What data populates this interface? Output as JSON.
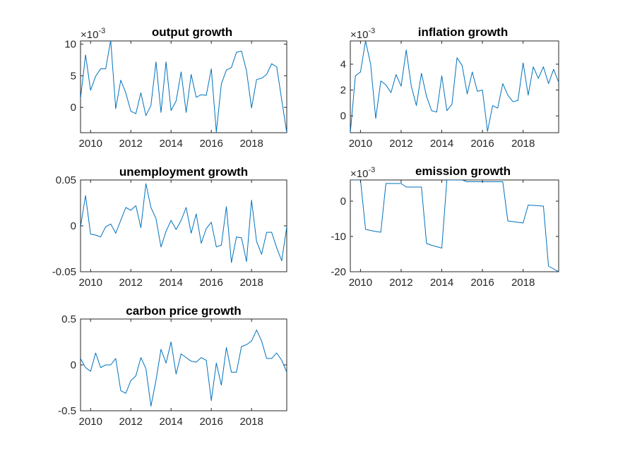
{
  "colors": {
    "series": "#0072bd",
    "axis": "#262626",
    "background": "#ffffff"
  },
  "chart_data": [
    {
      "type": "line",
      "title": "output growth",
      "exponent_label": "×10",
      "exponent_power": "-3",
      "x": [
        2009.5,
        2009.75,
        2010,
        2010.25,
        2010.5,
        2010.75,
        2011,
        2011.25,
        2011.5,
        2011.75,
        2012,
        2012.25,
        2012.5,
        2012.75,
        2013,
        2013.25,
        2013.5,
        2013.75,
        2014,
        2014.25,
        2014.5,
        2014.75,
        2015,
        2015.25,
        2015.5,
        2015.75,
        2016,
        2016.25,
        2016.5,
        2016.75,
        2017,
        2017.25,
        2017.5,
        2017.75,
        2018,
        2018.25,
        2018.5,
        2018.75,
        2019,
        2019.25,
        2019.5,
        2019.75
      ],
      "series": [
        {
          "values": [
            1.4,
            8.3,
            2.7,
            4.9,
            6.1,
            6.1,
            10.6,
            -0.2,
            4.3,
            2.3,
            -0.6,
            -1.0,
            2.3,
            -1.3,
            0.3,
            7.2,
            -0.8,
            7.2,
            -0.5,
            1.0,
            5.6,
            -0.8,
            5.2,
            1.6,
            2.0,
            1.9,
            6.1,
            -3.9,
            3.7,
            5.9,
            6.3,
            8.7,
            8.9,
            5.8,
            -0.1,
            4.4,
            4.6,
            5.2,
            6.9,
            6.4,
            1.2,
            -4.0
          ]
        }
      ],
      "xlim": [
        2009.5,
        2019.75
      ],
      "ylim": [
        -4,
        10.5
      ],
      "xticks": [
        2010,
        2012,
        2014,
        2016,
        2018
      ],
      "xtick_labels": [
        "2010",
        "2012",
        "2014",
        "2016",
        "2018"
      ],
      "yticks": [
        0,
        5,
        10
      ],
      "ytick_labels": [
        "0",
        "5",
        "10"
      ]
    },
    {
      "type": "line",
      "title": "inflation growth",
      "exponent_label": "×10",
      "exponent_power": "-3",
      "x": [
        2009.5,
        2009.75,
        2010,
        2010.25,
        2010.5,
        2010.75,
        2011,
        2011.25,
        2011.5,
        2011.75,
        2012,
        2012.25,
        2012.5,
        2012.75,
        2013,
        2013.25,
        2013.5,
        2013.75,
        2014,
        2014.25,
        2014.5,
        2014.75,
        2015,
        2015.25,
        2015.5,
        2015.75,
        2016,
        2016.25,
        2016.5,
        2016.75,
        2017,
        2017.25,
        2017.5,
        2017.75,
        2018,
        2018.25,
        2018.5,
        2018.75,
        2019,
        2019.25,
        2019.5,
        2019.75
      ],
      "series": [
        {
          "values": [
            -1.3,
            3.1,
            3.4,
            5.8,
            4.0,
            -0.2,
            2.7,
            2.4,
            1.8,
            3.2,
            2.3,
            5.1,
            2.3,
            0.8,
            3.3,
            1.5,
            0.4,
            0.3,
            3.1,
            0.4,
            0.9,
            4.5,
            3.9,
            1.7,
            3.4,
            1.9,
            2.0,
            -1.2,
            0.8,
            0.6,
            2.5,
            1.6,
            1.1,
            1.2,
            4.1,
            1.6,
            3.8,
            2.9,
            3.8,
            2.5,
            3.6,
            2.6
          ]
        }
      ],
      "xlim": [
        2009.5,
        2019.75
      ],
      "ylim": [
        -1.3,
        5.8
      ],
      "xticks": [
        2010,
        2012,
        2014,
        2016,
        2018
      ],
      "xtick_labels": [
        "2010",
        "2012",
        "2014",
        "2016",
        "2018"
      ],
      "yticks": [
        0,
        2,
        4
      ],
      "ytick_labels": [
        "0",
        "2",
        "4"
      ]
    },
    {
      "type": "line",
      "title": "unemployment growth",
      "exponent_label": "",
      "exponent_power": "",
      "x": [
        2009.5,
        2009.75,
        2010,
        2010.25,
        2010.5,
        2010.75,
        2011,
        2011.25,
        2011.5,
        2011.75,
        2012,
        2012.25,
        2012.5,
        2012.75,
        2013,
        2013.25,
        2013.5,
        2013.75,
        2014,
        2014.25,
        2014.5,
        2014.75,
        2015,
        2015.25,
        2015.5,
        2015.75,
        2016,
        2016.25,
        2016.5,
        2016.75,
        2017,
        2017.25,
        2017.5,
        2017.75,
        2018,
        2018.25,
        2018.5,
        2018.75,
        2019,
        2019.25,
        2019.5,
        2019.75
      ],
      "series": [
        {
          "values": [
            -0.001,
            0.033,
            -0.009,
            -0.01,
            -0.012,
            -0.001,
            0.002,
            -0.008,
            0.006,
            0.02,
            0.017,
            0.022,
            -0.002,
            0.046,
            0.02,
            0.008,
            -0.023,
            -0.006,
            0.006,
            -0.004,
            0.006,
            0.02,
            -0.008,
            0.013,
            -0.019,
            -0.003,
            0.004,
            -0.023,
            -0.021,
            0.021,
            -0.04,
            -0.012,
            -0.013,
            -0.039,
            0.028,
            -0.017,
            -0.031,
            -0.007,
            -0.007,
            -0.024,
            -0.038,
            -0.001
          ]
        }
      ],
      "xlim": [
        2009.5,
        2019.75
      ],
      "ylim": [
        -0.05,
        0.05
      ],
      "xticks": [
        2010,
        2012,
        2014,
        2016,
        2018
      ],
      "xtick_labels": [
        "2010",
        "2012",
        "2014",
        "2016",
        "2018"
      ],
      "yticks": [
        -0.05,
        0,
        0.05
      ],
      "ytick_labels": [
        "-0.05",
        "0",
        "0.05"
      ]
    },
    {
      "type": "line",
      "title": "emission growth",
      "exponent_label": "×10",
      "exponent_power": "-3",
      "x": [
        2009.5,
        2009.75,
        2010,
        2010.25,
        2010.5,
        2010.75,
        2011,
        2011.25,
        2011.5,
        2011.75,
        2012,
        2012.25,
        2012.5,
        2012.75,
        2013,
        2013.25,
        2013.5,
        2013.75,
        2014,
        2014.25,
        2014.5,
        2014.75,
        2015,
        2015.25,
        2015.5,
        2015.75,
        2016,
        2016.25,
        2016.5,
        2016.75,
        2017,
        2017.25,
        2017.5,
        2017.75,
        2018,
        2018.25,
        2018.5,
        2018.75,
        2019,
        2019.25,
        2019.5,
        2019.75
      ],
      "series": [
        {
          "values": [
            6.0,
            6.0,
            6.0,
            -8.0,
            -8.3,
            -8.6,
            -8.8,
            5.0,
            5.0,
            5.0,
            5.0,
            4.0,
            4.0,
            4.0,
            4.0,
            -12.0,
            -12.5,
            -12.9,
            -13.3,
            6.0,
            6.0,
            6.0,
            6.0,
            5.5,
            5.5,
            5.5,
            5.5,
            5.5,
            5.5,
            5.5,
            5.5,
            -5.6,
            -5.8,
            -6.0,
            -6.2,
            -1.1,
            -1.2,
            -1.3,
            -1.4,
            -18.4,
            -19.2,
            -20.0
          ]
        }
      ],
      "xlim": [
        2009.5,
        2019.75
      ],
      "ylim": [
        -20,
        6
      ],
      "xticks": [
        2010,
        2012,
        2014,
        2016,
        2018
      ],
      "xtick_labels": [
        "2010",
        "2012",
        "2014",
        "2016",
        "2018"
      ],
      "yticks": [
        -20,
        -10,
        0
      ],
      "ytick_labels": [
        "-20",
        "-10",
        "0"
      ]
    },
    {
      "type": "line",
      "title": "carbon price growth",
      "exponent_label": "",
      "exponent_power": "",
      "x": [
        2009.5,
        2009.75,
        2010,
        2010.25,
        2010.5,
        2010.75,
        2011,
        2011.25,
        2011.5,
        2011.75,
        2012,
        2012.25,
        2012.5,
        2012.75,
        2013,
        2013.25,
        2013.5,
        2013.75,
        2014,
        2014.25,
        2014.5,
        2014.75,
        2015,
        2015.25,
        2015.5,
        2015.75,
        2016,
        2016.25,
        2016.5,
        2016.75,
        2017,
        2017.25,
        2017.5,
        2017.75,
        2018,
        2018.25,
        2018.5,
        2018.75,
        2019,
        2019.25,
        2019.5,
        2019.75
      ],
      "series": [
        {
          "values": [
            0.07,
            -0.03,
            -0.07,
            0.13,
            -0.03,
            0.0,
            0.0,
            0.07,
            -0.28,
            -0.31,
            -0.17,
            -0.12,
            0.08,
            -0.04,
            -0.45,
            -0.17,
            0.17,
            0.02,
            0.25,
            -0.1,
            0.12,
            0.08,
            0.04,
            0.03,
            0.08,
            0.05,
            -0.39,
            0.02,
            -0.22,
            0.19,
            -0.08,
            -0.08,
            0.2,
            0.22,
            0.26,
            0.38,
            0.26,
            0.07,
            0.07,
            0.13,
            0.05,
            -0.08
          ]
        }
      ],
      "xlim": [
        2009.5,
        2019.75
      ],
      "ylim": [
        -0.5,
        0.5
      ],
      "xticks": [
        2010,
        2012,
        2014,
        2016,
        2018
      ],
      "xtick_labels": [
        "2010",
        "2012",
        "2014",
        "2016",
        "2018"
      ],
      "yticks": [
        -0.5,
        0,
        0.5
      ],
      "ytick_labels": [
        "-0.5",
        "0",
        "0.5"
      ]
    }
  ]
}
